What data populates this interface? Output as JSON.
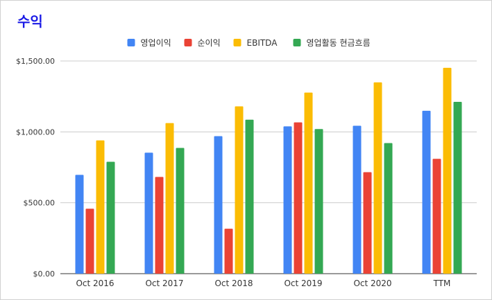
{
  "chart_data": {
    "type": "bar",
    "title": "수익",
    "categories": [
      "Oct 2016",
      "Oct 2017",
      "Oct 2018",
      "Oct 2019",
      "Oct 2020",
      "TTM"
    ],
    "series": [
      {
        "name": "영업이익",
        "color": "#4285f4",
        "values": [
          697,
          853,
          970,
          1039,
          1043,
          1149
        ]
      },
      {
        "name": "순이익",
        "color": "#ea4335",
        "values": [
          458,
          682,
          317,
          1067,
          716,
          810
        ]
      },
      {
        "name": "EBITDA",
        "color": "#fbbc04",
        "values": [
          940,
          1062,
          1180,
          1277,
          1349,
          1452
        ]
      },
      {
        "name": "영업활동 현금흐름",
        "color": "#34a853",
        "values": [
          789,
          887,
          1086,
          1020,
          921,
          1212
        ]
      }
    ],
    "y_ticks": [
      "$0.00",
      "$500.00",
      "$1,000.00",
      "$1,500.00"
    ],
    "y_tick_values": [
      0,
      500,
      1000,
      1500
    ],
    "ylim": [
      0,
      1500
    ],
    "grid": true,
    "legend_position": "top-center",
    "xlabel": "",
    "ylabel": ""
  }
}
